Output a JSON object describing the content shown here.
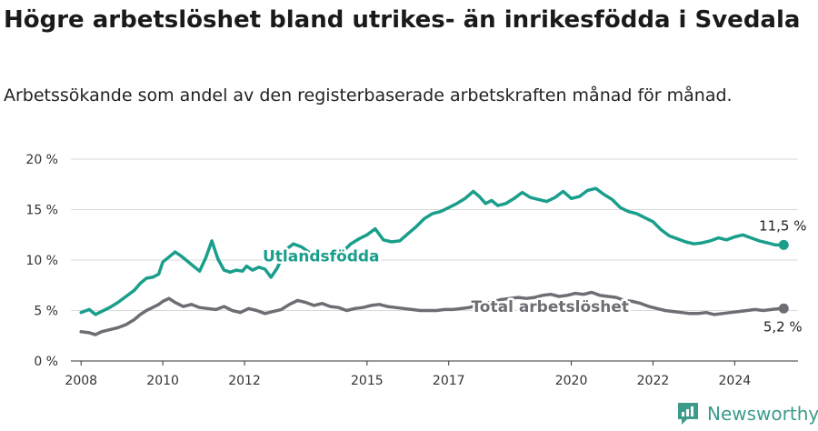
{
  "title": "Högre arbetslöshet bland utrikes- än inrikesfödda i Svedala",
  "subtitle": "Arbetssökande som andel av den registerbaserade arbetskraften månad för månad.",
  "brand": {
    "name": "Newsworthy",
    "icon": "newsworthy-logo-icon"
  },
  "colors": {
    "foreign_born": "#1a9e8c",
    "total": "#6f6d73",
    "grid": "#d9d9d9",
    "brand": "#3d9b8c"
  },
  "chart_data": {
    "type": "line",
    "ylim": [
      0,
      20
    ],
    "yticks": [
      0,
      5,
      10,
      15,
      20
    ],
    "ytick_labels": [
      "0 %",
      "5 %",
      "10 %",
      "15 %",
      "20 %"
    ],
    "xlim": [
      2007.75,
      2025.55
    ],
    "xticks": [
      2008,
      2010,
      2012,
      2015,
      2017,
      2020,
      2022,
      2024
    ],
    "xtick_labels": [
      "2008",
      "2010",
      "2012",
      "2015",
      "2017",
      "2020",
      "2022",
      "2024"
    ],
    "grid": true,
    "series": [
      {
        "name": "Utlandsfödda",
        "color": "#1a9e8c",
        "end_label": "11,5 %",
        "x": [
          2008.0,
          2008.2,
          2008.35,
          2008.5,
          2008.7,
          2008.9,
          2009.1,
          2009.3,
          2009.45,
          2009.6,
          2009.75,
          2009.9,
          2010.0,
          2010.15,
          2010.3,
          2010.45,
          2010.6,
          2010.75,
          2010.9,
          2011.05,
          2011.2,
          2011.35,
          2011.5,
          2011.65,
          2011.8,
          2011.95,
          2012.05,
          2012.2,
          2012.35,
          2012.5,
          2012.65,
          2012.8,
          2013.0,
          2013.2,
          2013.4,
          2013.6,
          2013.8,
          2014.0,
          2014.2,
          2014.4,
          2014.6,
          2014.8,
          2015.0,
          2015.2,
          2015.4,
          2015.6,
          2015.8,
          2016.0,
          2016.2,
          2016.4,
          2016.6,
          2016.8,
          2017.0,
          2017.2,
          2017.4,
          2017.6,
          2017.75,
          2017.9,
          2018.05,
          2018.2,
          2018.4,
          2018.6,
          2018.8,
          2019.0,
          2019.2,
          2019.4,
          2019.6,
          2019.8,
          2020.0,
          2020.2,
          2020.4,
          2020.6,
          2020.8,
          2021.0,
          2021.2,
          2021.4,
          2021.6,
          2021.8,
          2022.0,
          2022.2,
          2022.4,
          2022.6,
          2022.8,
          2023.0,
          2023.2,
          2023.4,
          2023.6,
          2023.8,
          2024.0,
          2024.2,
          2024.4,
          2024.6,
          2024.8,
          2025.0,
          2025.2
        ],
        "values": [
          4.8,
          5.1,
          4.6,
          4.9,
          5.3,
          5.8,
          6.4,
          7.0,
          7.7,
          8.2,
          8.3,
          8.6,
          9.8,
          10.3,
          10.8,
          10.4,
          9.9,
          9.4,
          8.9,
          10.2,
          11.9,
          10.1,
          9.0,
          8.8,
          9.0,
          8.9,
          9.4,
          9.0,
          9.3,
          9.1,
          8.3,
          9.2,
          11.0,
          11.6,
          11.3,
          10.7,
          10.6,
          10.4,
          9.9,
          10.8,
          11.6,
          12.1,
          12.5,
          13.1,
          12.0,
          11.8,
          11.9,
          12.6,
          13.3,
          14.1,
          14.6,
          14.8,
          15.2,
          15.6,
          16.1,
          16.8,
          16.3,
          15.6,
          15.9,
          15.4,
          15.6,
          16.1,
          16.7,
          16.2,
          16.0,
          15.8,
          16.2,
          16.8,
          16.1,
          16.3,
          16.9,
          17.1,
          16.5,
          16.0,
          15.2,
          14.8,
          14.6,
          14.2,
          13.8,
          13.0,
          12.4,
          12.1,
          11.8,
          11.6,
          11.7,
          11.9,
          12.2,
          12.0,
          12.3,
          12.5,
          12.2,
          11.9,
          11.7,
          11.5,
          11.5
        ]
      },
      {
        "name": "Total arbetslöshet",
        "color": "#6f6d73",
        "end_label": "5,2 %",
        "x": [
          2008.0,
          2008.2,
          2008.35,
          2008.5,
          2008.7,
          2008.9,
          2009.1,
          2009.3,
          2009.45,
          2009.6,
          2009.75,
          2009.9,
          2010.0,
          2010.15,
          2010.3,
          2010.5,
          2010.7,
          2010.9,
          2011.1,
          2011.3,
          2011.5,
          2011.7,
          2011.9,
          2012.1,
          2012.3,
          2012.5,
          2012.7,
          2012.9,
          2013.1,
          2013.3,
          2013.5,
          2013.7,
          2013.9,
          2014.1,
          2014.3,
          2014.5,
          2014.7,
          2014.9,
          2015.1,
          2015.3,
          2015.5,
          2015.7,
          2015.9,
          2016.1,
          2016.3,
          2016.5,
          2016.7,
          2016.9,
          2017.1,
          2017.3,
          2017.5,
          2017.7,
          2017.9,
          2018.1,
          2018.3,
          2018.5,
          2018.7,
          2018.9,
          2019.1,
          2019.3,
          2019.5,
          2019.7,
          2019.9,
          2020.1,
          2020.3,
          2020.5,
          2020.7,
          2020.9,
          2021.1,
          2021.3,
          2021.5,
          2021.7,
          2021.9,
          2022.1,
          2022.3,
          2022.5,
          2022.7,
          2022.9,
          2023.1,
          2023.3,
          2023.5,
          2023.7,
          2023.9,
          2024.1,
          2024.3,
          2024.5,
          2024.7,
          2024.9,
          2025.1,
          2025.2
        ],
        "values": [
          2.9,
          2.8,
          2.6,
          2.9,
          3.1,
          3.3,
          3.6,
          4.1,
          4.6,
          5.0,
          5.3,
          5.6,
          5.9,
          6.2,
          5.8,
          5.4,
          5.6,
          5.3,
          5.2,
          5.1,
          5.4,
          5.0,
          4.8,
          5.2,
          5.0,
          4.7,
          4.9,
          5.1,
          5.6,
          6.0,
          5.8,
          5.5,
          5.7,
          5.4,
          5.3,
          5.0,
          5.2,
          5.3,
          5.5,
          5.6,
          5.4,
          5.3,
          5.2,
          5.1,
          5.0,
          5.0,
          5.0,
          5.1,
          5.1,
          5.2,
          5.3,
          5.5,
          5.7,
          5.9,
          6.1,
          6.2,
          6.3,
          6.2,
          6.3,
          6.5,
          6.6,
          6.4,
          6.5,
          6.7,
          6.6,
          6.8,
          6.5,
          6.4,
          6.3,
          6.0,
          5.9,
          5.7,
          5.4,
          5.2,
          5.0,
          4.9,
          4.8,
          4.7,
          4.7,
          4.8,
          4.6,
          4.7,
          4.8,
          4.9,
          5.0,
          5.1,
          5.0,
          5.1,
          5.2,
          5.2
        ]
      }
    ]
  }
}
